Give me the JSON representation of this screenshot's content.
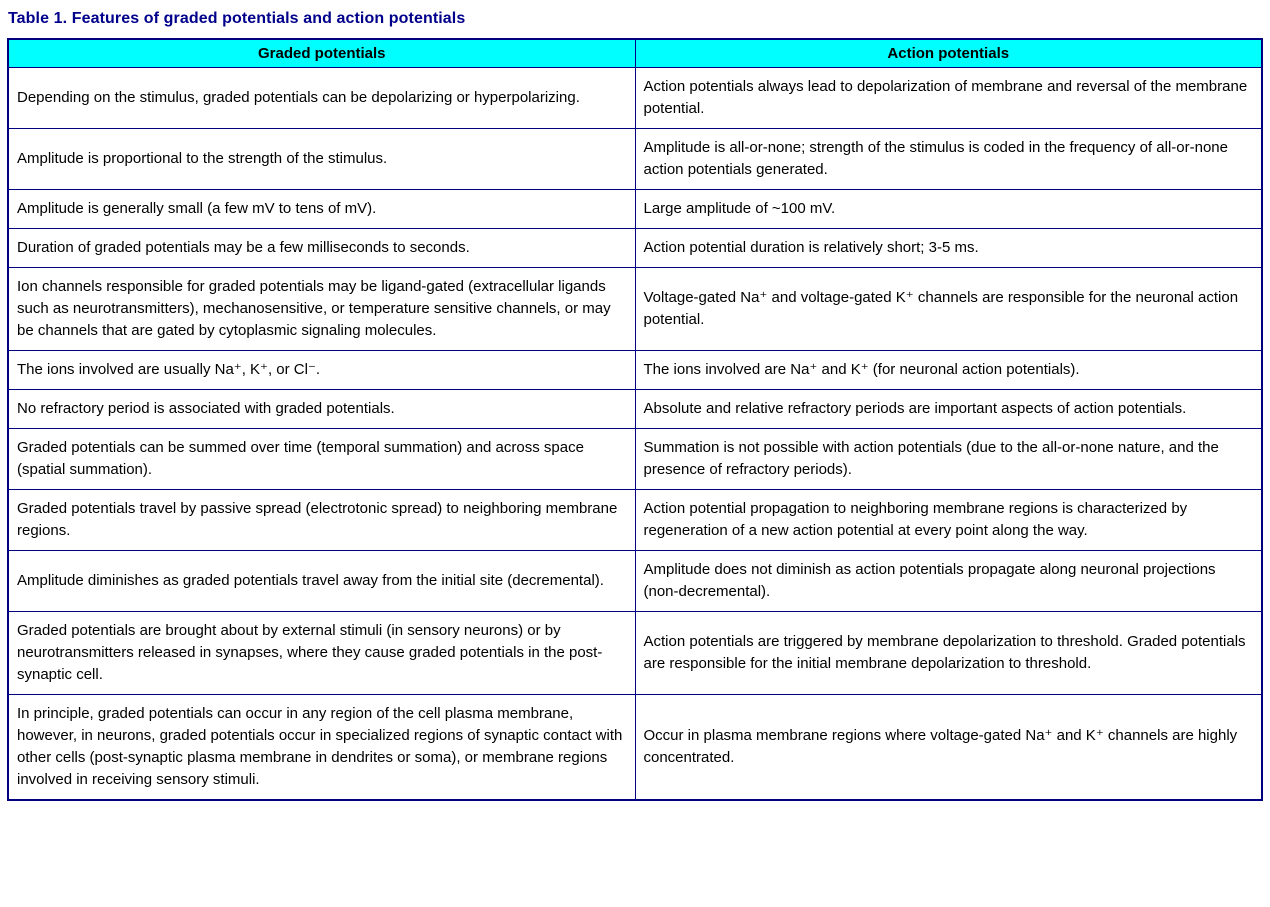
{
  "title": "Table 1. Features of graded potentials and action potentials",
  "colors": {
    "header_bg": "#00FFFF",
    "border": "#000080",
    "title_color": "#00008B"
  },
  "table": {
    "headers": [
      "Graded potentials",
      "Action potentials"
    ],
    "rows": [
      {
        "graded": "Depending on the stimulus, graded potentials can be depolarizing or hyperpolarizing.",
        "action": "Action potentials always lead to depolarization of membrane and reversal of the membrane potential."
      },
      {
        "graded": "Amplitude is proportional to the strength of the stimulus.",
        "action": "Amplitude is all-or-none; strength of the stimulus is coded in the frequency of all-or-none action potentials generated."
      },
      {
        "graded": "Amplitude is generally small (a few mV to tens of mV).",
        "action": "Large amplitude of ~100 mV."
      },
      {
        "graded": "Duration of graded potentials may be a few milliseconds to seconds.",
        "action": "Action potential duration is relatively short; 3-5 ms."
      },
      {
        "graded": "Ion channels responsible for graded potentials may be ligand-gated (extracellular ligands such as neurotransmitters), mechanosensitive, or temperature sensitive channels, or may be channels that are gated by cytoplasmic signaling molecules.",
        "action": "Voltage-gated Na⁺ and voltage-gated K⁺ channels are responsible for the neuronal action potential."
      },
      {
        "graded": "The ions involved are usually Na⁺, K⁺, or Cl⁻.",
        "action": "The ions involved are Na⁺ and K⁺ (for neuronal action potentials)."
      },
      {
        "graded": "No refractory period is associated with graded potentials.",
        "action": "Absolute and relative refractory periods are important aspects of action potentials."
      },
      {
        "graded": "Graded potentials can be summed over time (temporal summation) and across space (spatial summation).",
        "action": "Summation is not possible with action potentials (due to the all-or-none nature, and the presence of refractory periods)."
      },
      {
        "graded": "Graded potentials travel by passive spread (electrotonic spread) to neighboring membrane regions.",
        "action": "Action potential propagation to neighboring membrane regions is characterized by regeneration of a new action potential at every point along the way."
      },
      {
        "graded": "Amplitude diminishes as graded potentials travel away from the initial site (decremental).",
        "action": "Amplitude does not diminish as action potentials propagate along neuronal projections (non-decremental)."
      },
      {
        "graded": "Graded potentials are brought about by external stimuli (in sensory neurons) or by neurotransmitters released in synapses, where they cause graded potentials in the post-synaptic cell.",
        "action": "Action potentials are triggered by membrane depolarization to threshold. Graded potentials are responsible for the initial membrane depolarization to threshold."
      },
      {
        "graded": "In principle, graded potentials can occur in any region of the cell plasma membrane, however, in neurons, graded potentials occur in specialized regions of synaptic contact with other cells (post-synaptic plasma membrane in dendrites or soma), or membrane regions involved in receiving sensory stimuli.",
        "action": "Occur in plasma membrane regions where voltage-gated Na⁺ and K⁺ channels are highly concentrated."
      }
    ]
  }
}
